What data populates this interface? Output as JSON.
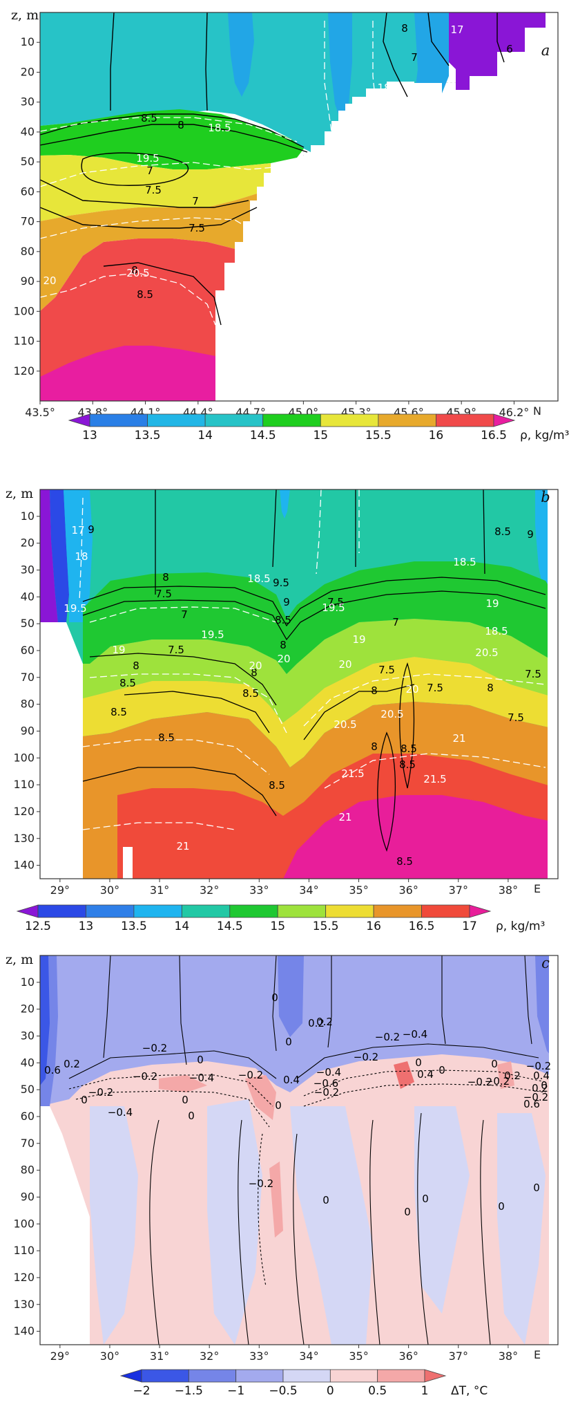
{
  "charts": [
    {
      "panel_label": "a",
      "type": "contour-section",
      "y_axis": {
        "label": "z, m",
        "ticks": [
          "10",
          "20",
          "30",
          "40",
          "50",
          "60",
          "70",
          "80",
          "90",
          "100",
          "110",
          "120"
        ],
        "range": [
          0,
          130
        ]
      },
      "x_axis": {
        "unit_label": "N",
        "ticks": [
          "43.5°",
          "43.8°",
          "44.1°",
          "44.4°",
          "44.7°",
          "45.0°",
          "45.3°",
          "45.6°",
          "45.9°",
          "46.2°"
        ],
        "range": [
          43.5,
          46.45
        ]
      },
      "colorbar": {
        "variable": "ρ, kg/m³",
        "boundaries": [
          "13",
          "13.5",
          "14",
          "14.5",
          "15",
          "15.5",
          "16",
          "16.5"
        ],
        "colors": [
          "#8a16d6",
          "#2a7fe6",
          "#22b6e6",
          "#27c3c7",
          "#1fce1f",
          "#e7e63a",
          "#e7a92c",
          "#f04a4a",
          "#e81ea0"
        ]
      },
      "black_contour_labels": [
        "8",
        "7",
        "6",
        "8.5",
        "7",
        "7.5",
        "8",
        "7",
        "7.5",
        "8",
        "8.5"
      ],
      "white_contour_labels": [
        "17",
        "18",
        "18.5",
        "18",
        "19.5",
        "20",
        "20.5"
      ]
    },
    {
      "panel_label": "b",
      "type": "contour-section",
      "y_axis": {
        "label": "z, m",
        "ticks": [
          "10",
          "20",
          "30",
          "40",
          "50",
          "60",
          "70",
          "80",
          "90",
          "100",
          "110",
          "120",
          "130",
          "140"
        ],
        "range": [
          0,
          145
        ]
      },
      "x_axis": {
        "unit_label": "E",
        "ticks": [
          "29°",
          "30°",
          "31°",
          "32°",
          "33°",
          "34°",
          "35°",
          "36°",
          "37°",
          "38°"
        ],
        "range": [
          28.6,
          39.0
        ]
      },
      "colorbar": {
        "variable": "ρ, kg/m³",
        "boundaries": [
          "12.5",
          "13",
          "13.5",
          "14",
          "14.5",
          "15",
          "15.5",
          "16",
          "16.5",
          "17"
        ],
        "colors": [
          "#8a16d6",
          "#2b49e6",
          "#2f7fe8",
          "#1fb4ef",
          "#22c8a5",
          "#1fc832",
          "#9ee23c",
          "#eddd33",
          "#e8952a",
          "#f04a3a",
          "#e81e9a"
        ]
      },
      "black_contour_labels": [
        "9",
        "9",
        "8.5",
        "9.5",
        "9",
        "8.5",
        "8",
        "8",
        "7.5",
        "7",
        "7.5",
        "8",
        "8.5",
        "8",
        "8.5",
        "7.5",
        "7",
        "7.5",
        "8",
        "7.5",
        "8",
        "7.5",
        "8.5",
        "8.5",
        "8",
        "8.5",
        "8.5",
        "8.5",
        "8.5",
        "7.5"
      ],
      "white_contour_labels": [
        "17",
        "18",
        "18.5",
        "18.5",
        "19.5",
        "19",
        "19.5",
        "18.5",
        "19",
        "20",
        "19.5",
        "19",
        "20",
        "20",
        "20.5",
        "20",
        "20.5",
        "20.5",
        "21",
        "21.5",
        "21.5",
        "21",
        "21"
      ]
    },
    {
      "panel_label": "c",
      "type": "contour-section",
      "y_axis": {
        "label": "z, m",
        "ticks": [
          "10",
          "20",
          "30",
          "40",
          "50",
          "60",
          "70",
          "80",
          "90",
          "100",
          "110",
          "120",
          "130",
          "140"
        ],
        "range": [
          0,
          145
        ]
      },
      "x_axis": {
        "unit_label": "E",
        "ticks": [
          "29°",
          "30°",
          "31°",
          "32°",
          "33°",
          "34°",
          "35°",
          "36°",
          "37°",
          "38°"
        ],
        "range": [
          28.6,
          39.0
        ]
      },
      "colorbar": {
        "variable": "ΔT, °C",
        "boundaries": [
          "−2",
          "−1.5",
          "−1",
          "−0.5",
          "0",
          "0.5",
          "1"
        ],
        "colors": [
          "#1830e0",
          "#3b57e6",
          "#7585e8",
          "#a3aaee",
          "#d4d7f5",
          "#f8d4d4",
          "#f4a8a8",
          "#ee7070"
        ]
      },
      "contour_labels": [
        "0",
        "0.2",
        "0",
        "−0.2",
        "0",
        "0.2",
        "−0.2",
        "−0.4",
        "0",
        "0.6",
        "0.2",
        "0.4",
        "−0.2",
        "0",
        "−0.4",
        "0",
        "−0.2",
        "−0.4",
        "−0.2",
        "−0.2",
        "0",
        "0.4",
        "−0.2",
        "0",
        "0.2",
        "−0.4",
        "−0.6",
        "−0.2",
        "0",
        "−0.2",
        "0.2",
        "−0.2",
        "0",
        "−0.2",
        "0.6",
        "0.4",
        "−0.2",
        "0",
        "0",
        "0",
        "0",
        "0",
        "0"
      ]
    }
  ]
}
